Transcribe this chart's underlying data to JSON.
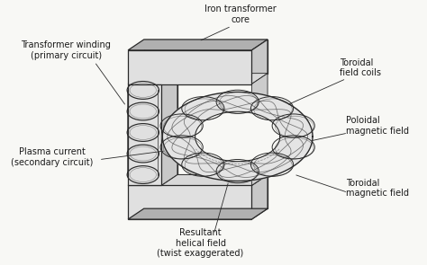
{
  "bg": "#f8f8f5",
  "lc": "#2a2a2a",
  "fc_light": "#e0e0e0",
  "fc_mid": "#c8c8c8",
  "fc_dark": "#b0b0b0",
  "fs": 7.0,
  "tc": "#1a1a1a",
  "labels": {
    "transformer_winding": "Transformer winding\n(primary circuit)",
    "iron_core": "Iron transformer\ncore",
    "toroidal_coils": "Toroidal\nfield coils",
    "poloidal_field": "Poloidal\nmagnetic field",
    "plasma_current": "Plasma current\n(secondary circuit)",
    "toroidal_field": "Toroidal\nmagnetic field",
    "helical_field": "Resultant\nhelical field\n(twist exaggerated)"
  }
}
